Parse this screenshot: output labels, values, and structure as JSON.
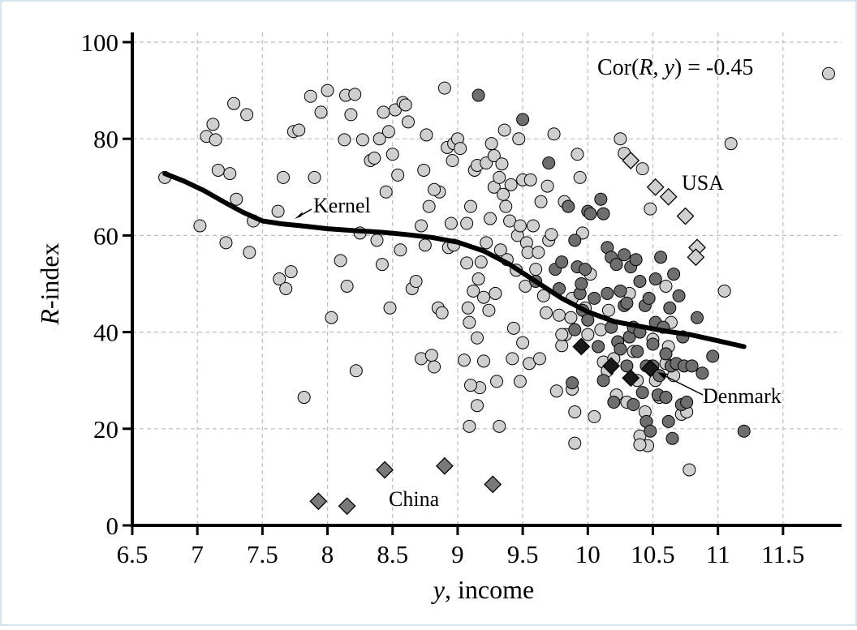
{
  "chart_data": {
    "type": "scatter",
    "title": "",
    "xlabel": "y, income",
    "xlabel_italic_part": "y",
    "xlabel_rest": ", income",
    "ylabel": "R-index",
    "ylabel_italic_part": "R",
    "ylabel_rest": "-index",
    "xlim": [
      6.5,
      11.95
    ],
    "ylim": [
      0,
      100
    ],
    "xticks": [
      6.5,
      7,
      7.5,
      8,
      8.5,
      9,
      9.5,
      10,
      10.5,
      11,
      11.5
    ],
    "xtick_labels": [
      "6.5",
      "7",
      "7.5",
      "8",
      "8.5",
      "9",
      "9.5",
      "10",
      "10.5",
      "11",
      "11.5"
    ],
    "yticks": [
      0,
      20,
      40,
      60,
      80,
      100
    ],
    "ytick_labels": [
      "0",
      "20",
      "40",
      "60",
      "80",
      "100"
    ],
    "grid": true,
    "legend": "none",
    "correlation_text": {
      "prefix": "Cor(",
      "var1": "R",
      "middle": ", ",
      "var2": "y",
      "suffix": ") = -0.45"
    },
    "colors": {
      "light_point": "#cfcfcf",
      "dark_point": "#6e6e6e",
      "diamond_light": "#cfcfcf",
      "diamond_mid": "#7a7a7a",
      "diamond_dark": "#1a1a1a",
      "kernel_line": "#000000",
      "grid": "#bdbdbd",
      "frame_border": "#d4e6ec"
    },
    "series": [
      {
        "marker": "circle",
        "fill": "#cfcfcf",
        "points": [
          [
            6.75,
            72
          ],
          [
            7.02,
            62
          ],
          [
            7.07,
            80.5
          ],
          [
            7.12,
            83
          ],
          [
            7.14,
            79.8
          ],
          [
            7.16,
            73.5
          ],
          [
            7.22,
            58.5
          ],
          [
            7.25,
            72.8
          ],
          [
            7.28,
            87.3
          ],
          [
            7.3,
            67.5
          ],
          [
            7.38,
            85
          ],
          [
            7.4,
            56.5
          ],
          [
            7.43,
            63
          ],
          [
            7.62,
            65
          ],
          [
            7.63,
            51
          ],
          [
            7.66,
            72
          ],
          [
            7.68,
            49
          ],
          [
            7.72,
            52.5
          ],
          [
            7.74,
            81.5
          ],
          [
            7.78,
            81.8
          ],
          [
            7.82,
            26.5
          ],
          [
            7.87,
            88.8
          ],
          [
            7.9,
            72
          ],
          [
            7.95,
            85.5
          ],
          [
            8.0,
            90
          ],
          [
            8.03,
            43
          ],
          [
            8.1,
            54.8
          ],
          [
            8.13,
            79.8
          ],
          [
            8.14,
            89
          ],
          [
            8.15,
            49.5
          ],
          [
            8.18,
            85
          ],
          [
            8.21,
            89.2
          ],
          [
            8.22,
            32
          ],
          [
            8.25,
            60.5
          ],
          [
            8.27,
            79.8
          ],
          [
            8.33,
            75.5
          ],
          [
            8.36,
            76
          ],
          [
            8.38,
            59
          ],
          [
            8.4,
            80
          ],
          [
            8.42,
            54
          ],
          [
            8.43,
            85.5
          ],
          [
            8.45,
            69
          ],
          [
            8.47,
            81.5
          ],
          [
            8.48,
            45
          ],
          [
            8.5,
            76.8
          ],
          [
            8.52,
            86
          ],
          [
            8.54,
            72.5
          ],
          [
            8.56,
            57
          ],
          [
            8.58,
            87.5
          ],
          [
            8.6,
            87
          ],
          [
            8.62,
            83.5
          ],
          [
            8.65,
            49
          ],
          [
            8.72,
            34.5
          ],
          [
            8.72,
            62
          ],
          [
            8.74,
            73.5
          ],
          [
            8.75,
            58
          ],
          [
            8.76,
            80.8
          ],
          [
            8.78,
            66
          ],
          [
            8.8,
            35.2
          ],
          [
            8.82,
            32.8
          ],
          [
            8.85,
            45
          ],
          [
            8.86,
            69
          ],
          [
            8.9,
            90.5
          ],
          [
            8.92,
            78.2
          ],
          [
            8.93,
            57.5
          ],
          [
            8.95,
            62.5
          ],
          [
            8.96,
            75.5
          ],
          [
            8.97,
            79
          ],
          [
            9.0,
            80
          ],
          [
            9.02,
            78
          ],
          [
            9.05,
            34.2
          ],
          [
            9.07,
            62.5
          ],
          [
            9.07,
            54.3
          ],
          [
            9.08,
            45
          ],
          [
            9.09,
            42
          ],
          [
            9.1,
            66
          ],
          [
            9.12,
            48.5
          ],
          [
            9.13,
            73.5
          ],
          [
            9.15,
            74.5
          ],
          [
            9.15,
            38.8
          ],
          [
            9.16,
            51
          ],
          [
            9.17,
            28.5
          ],
          [
            9.18,
            54.5
          ],
          [
            9.2,
            47.2
          ],
          [
            9.22,
            58.5
          ],
          [
            9.22,
            75
          ],
          [
            9.24,
            44.5
          ],
          [
            9.25,
            63.5
          ],
          [
            9.26,
            79
          ],
          [
            9.28,
            70
          ],
          [
            9.28,
            76.5
          ],
          [
            9.29,
            48
          ],
          [
            9.3,
            29.8
          ],
          [
            9.32,
            20.5
          ],
          [
            9.32,
            72
          ],
          [
            9.33,
            57
          ],
          [
            9.34,
            74.8
          ],
          [
            9.35,
            68.5
          ],
          [
            9.36,
            81.8
          ],
          [
            9.37,
            66
          ],
          [
            9.38,
            55
          ],
          [
            9.4,
            63
          ],
          [
            9.41,
            70.5
          ],
          [
            9.42,
            34.5
          ],
          [
            9.43,
            40.8
          ],
          [
            9.45,
            52.8
          ],
          [
            9.46,
            60
          ],
          [
            9.47,
            80
          ],
          [
            9.48,
            29.8
          ],
          [
            9.48,
            62
          ],
          [
            9.5,
            71.5
          ],
          [
            9.5,
            37.8
          ],
          [
            9.52,
            49.5
          ],
          [
            9.53,
            58.5
          ],
          [
            9.54,
            56.5
          ],
          [
            9.55,
            33.5
          ],
          [
            9.56,
            71.5
          ],
          [
            9.58,
            62
          ],
          [
            9.6,
            53
          ],
          [
            9.62,
            56.5
          ],
          [
            9.63,
            34.5
          ],
          [
            9.64,
            67
          ],
          [
            9.66,
            47.5
          ],
          [
            9.68,
            44
          ],
          [
            9.69,
            70.2
          ],
          [
            9.7,
            59
          ],
          [
            9.72,
            60.2
          ],
          [
            9.74,
            81
          ],
          [
            9.76,
            27.8
          ],
          [
            9.78,
            43.5
          ],
          [
            9.8,
            37.2
          ],
          [
            9.82,
            67
          ],
          [
            9.83,
            39.5
          ],
          [
            9.85,
            66
          ],
          [
            9.87,
            43
          ],
          [
            9.88,
            28.2
          ],
          [
            9.88,
            47
          ],
          [
            9.9,
            17
          ],
          [
            9.9,
            23.5
          ],
          [
            9.92,
            76.8
          ],
          [
            9.94,
            72
          ],
          [
            9.96,
            60.5
          ],
          [
            9.98,
            45
          ],
          [
            10.0,
            39.5
          ],
          [
            10.02,
            52
          ],
          [
            10.05,
            22.5
          ],
          [
            10.08,
            37
          ],
          [
            10.1,
            40.5
          ],
          [
            10.12,
            33.8
          ],
          [
            10.15,
            32
          ],
          [
            10.16,
            44.5
          ],
          [
            10.2,
            34.5
          ],
          [
            10.22,
            27
          ],
          [
            10.25,
            80
          ],
          [
            10.28,
            77
          ],
          [
            10.3,
            25.5
          ],
          [
            10.32,
            48
          ],
          [
            10.35,
            36
          ],
          [
            10.38,
            30
          ],
          [
            10.4,
            18.5
          ],
          [
            10.42,
            73.8
          ],
          [
            10.44,
            23.5
          ],
          [
            10.46,
            16.5
          ],
          [
            10.48,
            65.5
          ],
          [
            10.5,
            38.5
          ],
          [
            10.52,
            30
          ],
          [
            10.55,
            26.5
          ],
          [
            10.6,
            33.5
          ],
          [
            10.62,
            37
          ],
          [
            10.64,
            42
          ],
          [
            10.66,
            31
          ],
          [
            10.72,
            23
          ],
          [
            10.76,
            23.5
          ],
          [
            10.78,
            11.5
          ],
          [
            11.05,
            48.5
          ],
          [
            11.1,
            79
          ],
          [
            11.85,
            93.5
          ],
          [
            8.82,
            69.5
          ],
          [
            9.09,
            20.5
          ],
          [
            9.15,
            24.8
          ],
          [
            10.6,
            49.5
          ],
          [
            10.4,
            16.7
          ],
          [
            8.88,
            44
          ],
          [
            8.97,
            58
          ],
          [
            9.8,
            39.5
          ],
          [
            8.68,
            50.5
          ],
          [
            9.2,
            34
          ],
          [
            9.1,
            29
          ]
        ]
      },
      {
        "marker": "circle",
        "fill": "#6e6e6e",
        "points": [
          [
            9.16,
            89
          ],
          [
            9.5,
            84
          ],
          [
            9.7,
            75
          ],
          [
            9.9,
            59
          ],
          [
            9.92,
            53.5
          ],
          [
            9.94,
            48
          ],
          [
            9.95,
            50
          ],
          [
            9.96,
            44.5
          ],
          [
            9.98,
            53
          ],
          [
            10.0,
            42.5
          ],
          [
            10.0,
            65
          ],
          [
            10.02,
            64.5
          ],
          [
            10.05,
            47
          ],
          [
            10.08,
            37
          ],
          [
            10.1,
            67.5
          ],
          [
            10.12,
            64.5
          ],
          [
            10.12,
            30
          ],
          [
            10.15,
            57.5
          ],
          [
            10.15,
            48
          ],
          [
            10.18,
            55.5
          ],
          [
            10.18,
            41
          ],
          [
            10.2,
            25.5
          ],
          [
            10.22,
            54
          ],
          [
            10.23,
            38
          ],
          [
            10.25,
            48.5
          ],
          [
            10.25,
            36.5
          ],
          [
            10.28,
            56
          ],
          [
            10.28,
            45.5
          ],
          [
            10.3,
            46
          ],
          [
            10.3,
            33
          ],
          [
            10.32,
            39
          ],
          [
            10.33,
            53.5
          ],
          [
            10.35,
            41
          ],
          [
            10.35,
            25
          ],
          [
            10.37,
            55
          ],
          [
            10.38,
            36
          ],
          [
            10.4,
            50.5
          ],
          [
            10.4,
            40
          ],
          [
            10.42,
            27.5
          ],
          [
            10.44,
            45.5
          ],
          [
            10.45,
            33
          ],
          [
            10.45,
            21.5
          ],
          [
            10.47,
            47
          ],
          [
            10.48,
            19.5
          ],
          [
            10.5,
            37.5
          ],
          [
            10.5,
            33
          ],
          [
            10.52,
            51
          ],
          [
            10.52,
            42
          ],
          [
            10.54,
            27
          ],
          [
            10.55,
            31
          ],
          [
            10.56,
            55.5
          ],
          [
            10.58,
            41
          ],
          [
            10.6,
            35.5
          ],
          [
            10.6,
            26.5
          ],
          [
            10.62,
            21.5
          ],
          [
            10.63,
            45
          ],
          [
            10.64,
            33
          ],
          [
            10.65,
            18
          ],
          [
            10.66,
            52
          ],
          [
            10.68,
            33.5
          ],
          [
            10.7,
            47.5
          ],
          [
            10.72,
            25
          ],
          [
            10.73,
            39
          ],
          [
            10.74,
            33
          ],
          [
            10.76,
            25.5
          ],
          [
            10.8,
            33
          ],
          [
            10.84,
            43
          ],
          [
            10.88,
            31.5
          ],
          [
            10.96,
            35
          ],
          [
            11.2,
            19.5
          ],
          [
            9.88,
            29.5
          ],
          [
            9.6,
            50.5
          ],
          [
            9.75,
            53
          ],
          [
            9.8,
            54.5
          ],
          [
            9.78,
            49
          ],
          [
            9.85,
            66
          ],
          [
            9.9,
            40.5
          ]
        ]
      },
      {
        "marker": "diamond",
        "fill": "#cfcfcf",
        "points": [
          [
            10.33,
            75.5
          ],
          [
            10.52,
            70
          ],
          [
            10.62,
            68
          ],
          [
            10.75,
            64
          ],
          [
            10.84,
            57.5
          ],
          [
            10.83,
            55.5
          ]
        ]
      },
      {
        "marker": "diamond",
        "fill": "#7a7a7a",
        "points": [
          [
            7.93,
            5
          ],
          [
            8.15,
            4
          ],
          [
            8.44,
            11.5
          ],
          [
            8.9,
            12.3
          ],
          [
            9.27,
            8.5
          ]
        ]
      },
      {
        "marker": "diamond",
        "fill": "#1a1a1a",
        "points": [
          [
            9.95,
            37
          ],
          [
            10.18,
            33
          ],
          [
            10.33,
            30.5
          ],
          [
            10.48,
            32.5
          ]
        ]
      }
    ],
    "kernel": {
      "name": "Kernel",
      "x": [
        6.75,
        6.9,
        7.05,
        7.2,
        7.35,
        7.5,
        7.65,
        7.8,
        8.0,
        8.2,
        8.4,
        8.6,
        8.8,
        9.0,
        9.2,
        9.4,
        9.6,
        9.8,
        10.0,
        10.2,
        10.4,
        10.6,
        10.8,
        11.0,
        11.2
      ],
      "y": [
        72.8,
        71.2,
        69.3,
        67.0,
        64.8,
        63.0,
        62.4,
        62.0,
        61.4,
        61.0,
        60.7,
        60.2,
        59.6,
        58.6,
        56.8,
        54.0,
        50.5,
        47.0,
        44.2,
        42.2,
        41.2,
        40.2,
        39.4,
        38.2,
        37.0
      ]
    },
    "annotations": [
      {
        "text": "Kernel",
        "arrow_to": [
          7.7,
          63.5
        ]
      },
      {
        "text": "USA"
      },
      {
        "text": "China"
      },
      {
        "text": "Denmark",
        "arrow_to": [
          10.55,
          31.5
        ]
      }
    ]
  }
}
